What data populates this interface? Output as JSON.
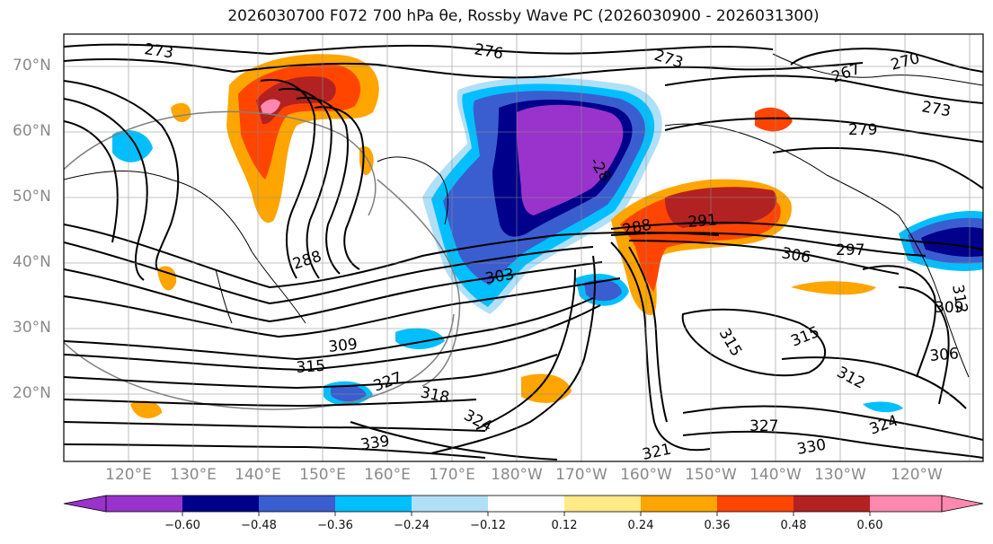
{
  "title": "2026030700 F072 700 hPa θe, Rossby Wave PC (2026030900 - 2026031300)",
  "lat_labels": [
    "70°N",
    "60°N",
    "50°N",
    "40°N",
    "30°N",
    "20°N"
  ],
  "lon_labels": [
    "120°E",
    "130°E",
    "140°E",
    "150°E",
    "160°E",
    "170°E",
    "180°W",
    "170°W",
    "160°W",
    "150°W",
    "140°W",
    "130°W",
    "120°W"
  ],
  "contour_labels": [
    "273",
    "276",
    "273",
    "267",
    "270",
    "273",
    "279",
    "288",
    "303",
    "306",
    "297",
    "291",
    "288",
    "309",
    "315",
    "318",
    "324",
    "327",
    "339",
    "330",
    "327",
    "324",
    "321",
    "315",
    "312",
    "309",
    "306",
    "312",
    "315",
    "-28"
  ],
  "colorbar": {
    "tick_labels": [
      "−0.60",
      "−0.48",
      "−0.36",
      "−0.24",
      "−0.12",
      "0.12",
      "0.24",
      "0.36",
      "0.48",
      "0.60"
    ],
    "colors": [
      "#9933cc",
      "#00008b",
      "#3a5ecf",
      "#00bfff",
      "#b0e0f8",
      "#ffffff",
      "#ffea85",
      "#ffa500",
      "#ff4500",
      "#b22222",
      "#ff88b0",
      "#ff88b0"
    ]
  },
  "shading_colors": {
    "purple": "#9933cc",
    "navy": "#00008b",
    "royal": "#3a5ecf",
    "cyan": "#00bfff",
    "light_blue": "#b0e0f8",
    "yellow": "#ffea85",
    "orange": "#ffa500",
    "red_orange": "#ff4500",
    "dark_red": "#b22222",
    "pink": "#ff88b0"
  }
}
